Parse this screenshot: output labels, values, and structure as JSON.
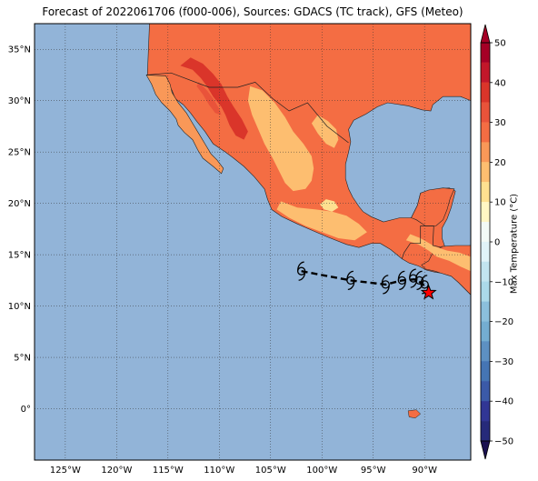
{
  "title": "Forecast of 2022061706 (f000-006), Sources: GDACS (TC track), GFS (Meteo)",
  "map": {
    "lon_range": [
      -128,
      -85.5
    ],
    "lat_range": [
      -5,
      37.5
    ],
    "lon_ticks": [
      {
        "value": -125,
        "label": "125°W"
      },
      {
        "value": -120,
        "label": "120°W"
      },
      {
        "value": -115,
        "label": "115°W"
      },
      {
        "value": -110,
        "label": "110°W"
      },
      {
        "value": -105,
        "label": "105°W"
      },
      {
        "value": -100,
        "label": "100°W"
      },
      {
        "value": -95,
        "label": "95°W"
      },
      {
        "value": -90,
        "label": "90°W"
      }
    ],
    "lat_ticks": [
      {
        "value": 0,
        "label": "0°"
      },
      {
        "value": 5,
        "label": "5°N"
      },
      {
        "value": 10,
        "label": "10°N"
      },
      {
        "value": 15,
        "label": "15°N"
      },
      {
        "value": 20,
        "label": "20°N"
      },
      {
        "value": 25,
        "label": "25°N"
      },
      {
        "value": 30,
        "label": "30°N"
      },
      {
        "value": 35,
        "label": "35°N"
      }
    ],
    "grid": "dotted",
    "ocean_color": "#92b4d8"
  },
  "colorbar": {
    "label": "Max Temperature (°C)",
    "ticks": [
      "50",
      "40",
      "30",
      "20",
      "10",
      "0",
      "−10",
      "−20",
      "−30",
      "−40",
      "−50"
    ],
    "bands": [
      {
        "from": 45,
        "to": 50,
        "color": "#a50026"
      },
      {
        "from": 40,
        "to": 45,
        "color": "#c2172a"
      },
      {
        "from": 35,
        "to": 40,
        "color": "#da352a"
      },
      {
        "from": 30,
        "to": 35,
        "color": "#e9533a"
      },
      {
        "from": 25,
        "to": 30,
        "color": "#f46d43"
      },
      {
        "from": 20,
        "to": 25,
        "color": "#f99858"
      },
      {
        "from": 15,
        "to": 20,
        "color": "#fdbe70"
      },
      {
        "from": 10,
        "to": 15,
        "color": "#fee090"
      },
      {
        "from": 5,
        "to": 10,
        "color": "#fff6c4"
      },
      {
        "from": 0,
        "to": 5,
        "color": "#f2faf6"
      },
      {
        "from": -5,
        "to": 0,
        "color": "#e0f3f8"
      },
      {
        "from": -10,
        "to": -5,
        "color": "#c2e4ef"
      },
      {
        "from": -15,
        "to": -10,
        "color": "#abd9e9"
      },
      {
        "from": -20,
        "to": -15,
        "color": "#8bbfdc"
      },
      {
        "from": -25,
        "to": -20,
        "color": "#74add1"
      },
      {
        "from": -30,
        "to": -25,
        "color": "#5d90c2"
      },
      {
        "from": -35,
        "to": -30,
        "color": "#4575b4"
      },
      {
        "from": -40,
        "to": -35,
        "color": "#3b5aa8"
      },
      {
        "from": -45,
        "to": -40,
        "color": "#313695"
      },
      {
        "from": -50,
        "to": -45,
        "color": "#262a7a"
      }
    ],
    "over_color": "#a50026",
    "under_color": "#1a1050"
  },
  "track": {
    "points": [
      {
        "lon": -102,
        "lat": 13.4
      },
      {
        "lon": -97.2,
        "lat": 12.5
      },
      {
        "lon": -93.8,
        "lat": 12.1
      },
      {
        "lon": -92.2,
        "lat": 12.5
      },
      {
        "lon": -91.0,
        "lat": 12.6
      },
      {
        "lon": -90.4,
        "lat": 12.3
      },
      {
        "lon": -89.8,
        "lat": 11.8
      }
    ],
    "markers": [
      {
        "lon": -102,
        "lat": 13.4
      },
      {
        "lon": -97.2,
        "lat": 12.5
      },
      {
        "lon": -93.8,
        "lat": 12.1
      },
      {
        "lon": -92.2,
        "lat": 12.5
      },
      {
        "lon": -91.1,
        "lat": 12.7
      },
      {
        "lon": -90.5,
        "lat": 12.5
      },
      {
        "lon": -90.0,
        "lat": 12.1
      }
    ],
    "current": {
      "lon": -89.6,
      "lat": 11.3
    }
  },
  "colors": {
    "land_hot": "#f46d43",
    "land_warm": "#fdbe70",
    "land_very_hot": "#e9533a",
    "land_hottest": "#da352a",
    "land_mild": "#fee090",
    "star": "#ff0000"
  }
}
